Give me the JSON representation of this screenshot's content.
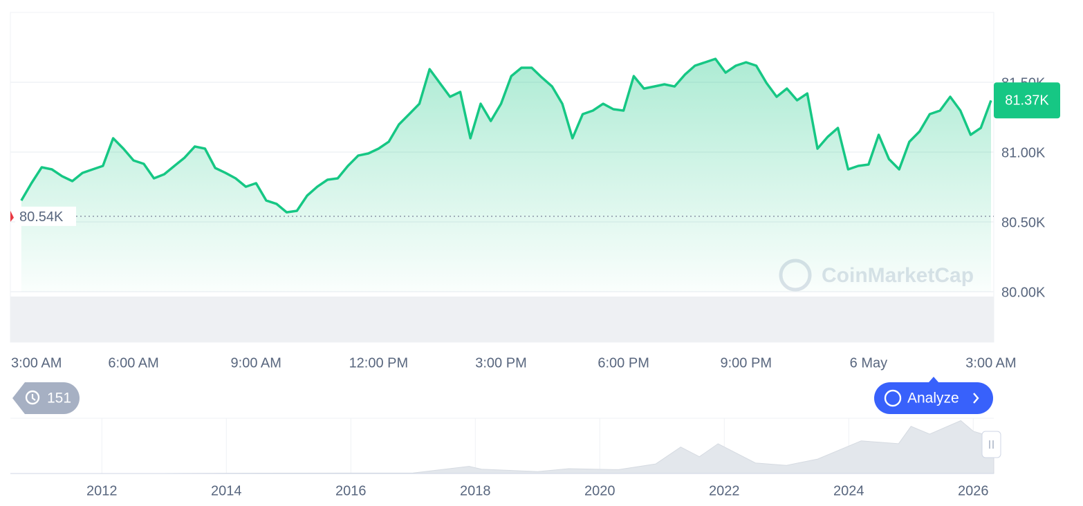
{
  "chart_data": [
    {
      "type": "line",
      "color": "#16c784",
      "x": [
        0.25,
        0.5,
        0.75,
        1,
        1.25,
        1.5,
        1.75,
        2,
        2.25,
        2.5,
        2.75,
        3,
        3.25,
        3.5,
        3.75,
        4,
        4.25,
        4.5,
        4.75,
        5,
        5.25,
        5.5,
        5.75,
        6,
        6.25,
        6.5,
        6.75,
        7,
        7.25,
        7.5,
        7.75,
        8,
        8.25,
        8.5,
        8.75,
        9,
        9.25,
        9.5,
        9.75,
        10,
        10.25,
        10.5,
        10.75,
        11,
        11.25,
        11.5,
        11.75,
        12,
        12.25,
        12.5,
        12.75,
        13,
        13.25,
        13.5,
        13.75,
        14,
        14.25,
        14.5,
        14.75,
        15,
        15.25,
        15.5,
        15.75,
        16,
        16.25,
        16.5,
        16.75,
        17,
        17.25,
        17.5,
        17.75,
        18,
        18.25,
        18.5,
        18.75,
        19,
        19.25,
        19.5,
        19.75,
        20,
        20.25,
        20.5,
        20.75,
        21,
        21.25,
        21.5,
        21.75,
        22,
        22.25,
        22.5,
        22.75,
        23,
        23.25,
        23.5,
        23.75,
        24
      ],
      "values": [
        80653,
        80777,
        80891,
        80876,
        80827,
        80792,
        80851,
        80876,
        80901,
        81099,
        81025,
        80940,
        80916,
        80812,
        80841,
        80901,
        80960,
        81040,
        81025,
        80886,
        80851,
        80812,
        80752,
        80777,
        80653,
        80629,
        80569,
        80579,
        80688,
        80752,
        80802,
        80812,
        80901,
        80975,
        80990,
        81025,
        81074,
        81198,
        81272,
        81346,
        81594,
        81495,
        81396,
        81431,
        81099,
        81346,
        81223,
        81346,
        81544,
        81604,
        81604,
        81534,
        81470,
        81346,
        81099,
        81272,
        81297,
        81346,
        81307,
        81297,
        81544,
        81455,
        81470,
        81485,
        81470,
        81554,
        81619,
        81643,
        81668,
        81569,
        81619,
        81643,
        81619,
        81495,
        81396,
        81455,
        81371,
        81420,
        81025,
        81109,
        81173,
        80876,
        80901,
        80911,
        81124,
        80950,
        80876,
        81074,
        81148,
        81272,
        81297,
        81396,
        81297,
        81124,
        81173,
        81370
      ],
      "xlim": [
        0,
        24
      ],
      "xticks": [
        {
          "value": 0,
          "label": "3:00 AM"
        },
        {
          "value": 3,
          "label": "6:00 AM"
        },
        {
          "value": 6,
          "label": "9:00 AM"
        },
        {
          "value": 9,
          "label": "12:00 PM"
        },
        {
          "value": 12,
          "label": "3:00 PM"
        },
        {
          "value": 15,
          "label": "6:00 PM"
        },
        {
          "value": 18,
          "label": "9:00 PM"
        },
        {
          "value": 21,
          "label": "6 May"
        },
        {
          "value": 24,
          "label": "3:00 AM"
        }
      ],
      "ylim": [
        80000,
        82000
      ],
      "yticks": [
        {
          "value": 80000,
          "label": "80.00K"
        },
        {
          "value": 80500,
          "label": "80.50K"
        },
        {
          "value": 81000,
          "label": "81.00K"
        },
        {
          "value": 81500,
          "label": "81.50K"
        }
      ],
      "grid": true,
      "start_value": 80540,
      "start_label": "80.54K",
      "last_label": "81.37K",
      "watermark": "CoinMarketCap"
    },
    {
      "type": "area",
      "color": "#e3e7ec",
      "x": [
        2010.6,
        2013,
        2014,
        2017,
        2017.9,
        2018.1,
        2019,
        2019.5,
        2020.3,
        2020.9,
        2021.3,
        2021.6,
        2021.9,
        2022.5,
        2023,
        2023.5,
        2024.2,
        2024.8,
        2025,
        2025.3,
        2025.8,
        2026,
        2026.33
      ],
      "values": [
        0,
        0,
        600,
        1000,
        15000,
        9000,
        4000,
        10000,
        8000,
        20000,
        55000,
        35000,
        62000,
        22000,
        17000,
        30000,
        68000,
        62000,
        98000,
        82000,
        110000,
        88000,
        75000
      ],
      "xlim": [
        2010.53,
        2026.33
      ],
      "xticks": [
        2012,
        2014,
        2016,
        2018,
        2020,
        2022,
        2024,
        2026
      ],
      "ylim": [
        0,
        115000
      ],
      "grid": true
    }
  ],
  "controls": {
    "history_count": "151",
    "analyze": "Analyze"
  }
}
